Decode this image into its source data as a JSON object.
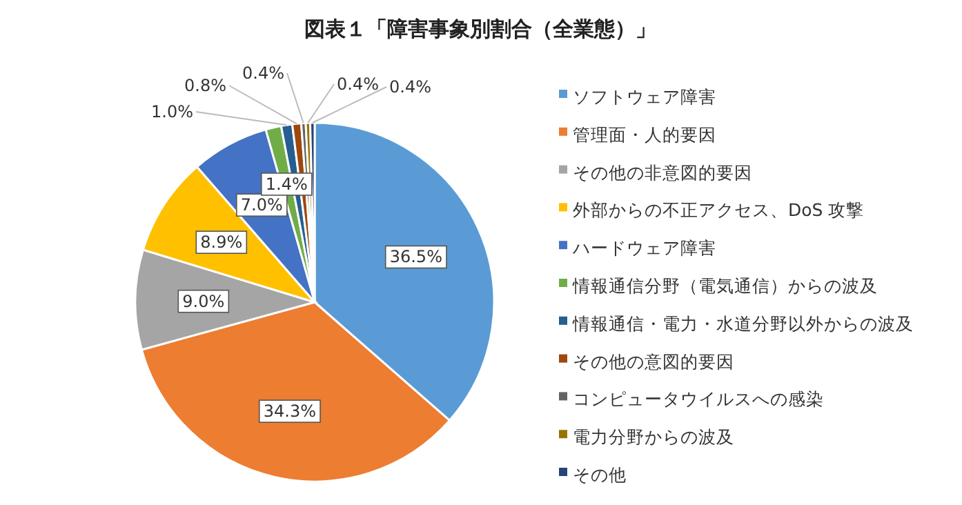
{
  "chart_data": {
    "type": "pie",
    "title": "図表１「障害事象別割合（全業態）」",
    "categories": [
      "ソフトウェア障害",
      "管理面・人的要因",
      "その他の非意図的要因",
      "外部からの不正アクセス、DoS 攻撃",
      "ハードウェア障害",
      "情報通信分野（電気通信）からの波及",
      "情報通信・電力・水道分野以外からの波及",
      "その他の意図的要因",
      "コンピュータウイルスへの感染",
      "電力分野からの波及",
      "その他"
    ],
    "values": [
      36.5,
      34.3,
      9.0,
      8.9,
      7.0,
      1.4,
      1.0,
      0.8,
      0.4,
      0.4,
      0.4
    ],
    "value_labels": [
      "36.5%",
      "34.3%",
      "9.0%",
      "8.9%",
      "7.0%",
      "1.4%",
      "1.0%",
      "0.8%",
      "0.4%",
      "0.4%",
      "0.4%"
    ],
    "colors": [
      "#5b9bd5",
      "#ed7d31",
      "#a5a5a5",
      "#ffc000",
      "#4472c4",
      "#70ad47",
      "#255e91",
      "#9e480e",
      "#636363",
      "#997300",
      "#264478"
    ],
    "legend": "right"
  }
}
